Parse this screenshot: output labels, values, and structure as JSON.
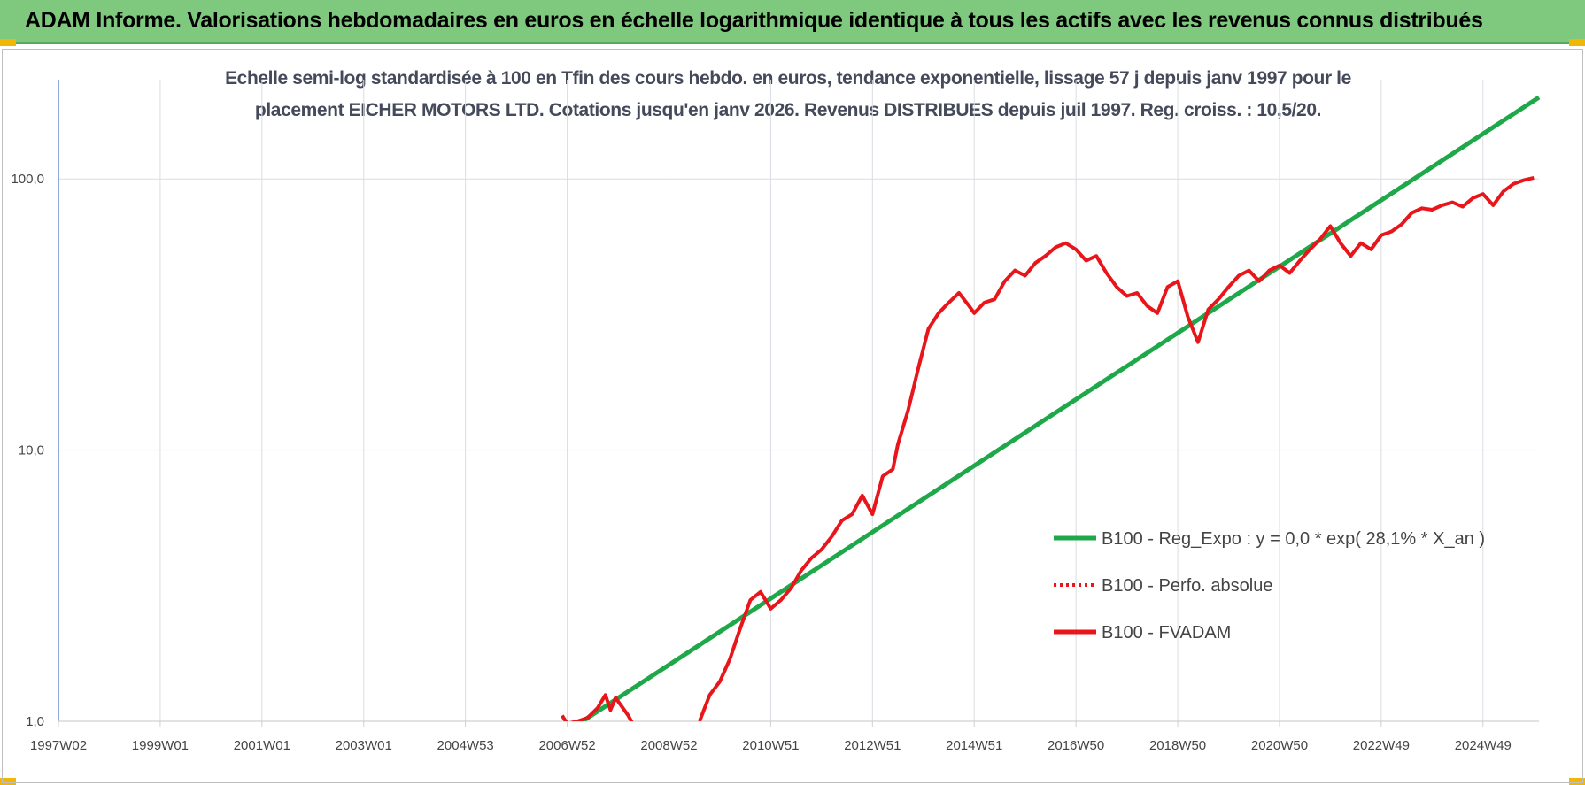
{
  "banner": {
    "title": "ADAM Informe. Valorisations hebdomadaires en euros en échelle logarithmique identique à tous les actifs avec les revenus connus distribués"
  },
  "colors": {
    "banner": "#7fc97f",
    "trend": "#1ea84a",
    "series": "#e8161b",
    "grid": "#d9dde3",
    "title": "#444a59"
  },
  "chart_data": {
    "type": "line",
    "title_line1": "Echelle semi-log standardisée à 100 en Tfin des cours hebdo. en euros, tendance exponentielle, lissage 57 j depuis janv 1997 pour le",
    "title_line2": "placement EICHER MOTORS LTD. Cotations jusqu'en janv 2026. Revenus DISTRIBUES depuis juil 1997. Reg. croiss. : 10,5/20.",
    "y_scale": "log",
    "ylim": [
      1,
      200
    ],
    "xlim": [
      1997.0,
      2026.1
    ],
    "y_ticks": [
      1,
      10,
      100
    ],
    "y_tick_labels": [
      "1,0",
      "10,0",
      "100,0"
    ],
    "x_tick_labels": [
      "1997W02",
      "1999W01",
      "2001W01",
      "2003W01",
      "2004W53",
      "2006W52",
      "2008W52",
      "2010W51",
      "2012W51",
      "2014W51",
      "2016W50",
      "2018W50",
      "2020W50",
      "2022W49",
      "2024W49"
    ],
    "x_tick_positions": [
      1997.0,
      1999.0,
      2001.0,
      2003.0,
      2005.0,
      2007.0,
      2009.0,
      2011.0,
      2013.0,
      2015.0,
      2017.0,
      2019.0,
      2021.0,
      2023.0,
      2025.0
    ],
    "grid": true,
    "legend_position": "right",
    "series": [
      {
        "name": "B100 - Reg_Expo : y = 0,0 * exp( 28,1% *  X_an )",
        "style": "solid-thick",
        "color": "#1ea84a",
        "x": [
          2007.3,
          2026.1
        ],
        "y": [
          1.0,
          200.0
        ]
      },
      {
        "name": "B100 - Perfo. absolue",
        "style": "dotted",
        "color": "#e8161b",
        "x": [],
        "y": []
      },
      {
        "name": "B100 - FVADAM",
        "style": "solid",
        "color": "#e8161b",
        "segments": [
          {
            "x": [
              2006.9,
              2007.0,
              2007.2,
              2007.4,
              2007.6,
              2007.75,
              2007.85,
              2007.95,
              2008.05,
              2008.2,
              2008.3
            ],
            "y": [
              1.05,
              0.98,
              1.0,
              1.03,
              1.12,
              1.25,
              1.1,
              1.22,
              1.15,
              1.05,
              0.97
            ]
          },
          {
            "x": [
              2009.6,
              2009.8,
              2010.0,
              2010.2,
              2010.4,
              2010.6,
              2010.8,
              2011.0,
              2011.2,
              2011.4,
              2011.6,
              2011.8,
              2012.0,
              2012.2,
              2012.4,
              2012.6,
              2012.8,
              2013.0,
              2013.2,
              2013.4,
              2013.5,
              2013.7,
              2013.9,
              2014.1,
              2014.3,
              2014.5,
              2014.7,
              2014.9,
              2015.0,
              2015.2,
              2015.4,
              2015.6,
              2015.8,
              2016.0,
              2016.2,
              2016.4,
              2016.6,
              2016.8,
              2017.0,
              2017.2,
              2017.4,
              2017.6,
              2017.8,
              2018.0,
              2018.2,
              2018.4,
              2018.6,
              2018.8,
              2019.0,
              2019.2,
              2019.4,
              2019.6,
              2019.8,
              2020.0,
              2020.2,
              2020.4,
              2020.6,
              2020.8,
              2021.0,
              2021.2,
              2021.4,
              2021.6,
              2021.8,
              2022.0,
              2022.2,
              2022.4,
              2022.6,
              2022.8,
              2023.0,
              2023.2,
              2023.4,
              2023.6,
              2023.8,
              2024.0,
              2024.2,
              2024.4,
              2024.6,
              2024.8,
              2025.0,
              2025.2,
              2025.4,
              2025.6,
              2025.8,
              2026.0
            ],
            "y": [
              1.0,
              1.25,
              1.4,
              1.7,
              2.2,
              2.8,
              3.0,
              2.6,
              2.8,
              3.1,
              3.6,
              4.0,
              4.3,
              4.8,
              5.5,
              5.8,
              6.8,
              5.8,
              8.0,
              8.5,
              10.5,
              14.0,
              20.0,
              28.0,
              32.0,
              35.0,
              38.0,
              34.0,
              32.0,
              35.0,
              36.0,
              42.0,
              46.0,
              44.0,
              49.0,
              52.0,
              56.0,
              58.0,
              55.0,
              50.0,
              52.0,
              45.0,
              40.0,
              37.0,
              38.0,
              34.0,
              32.0,
              40.0,
              42.0,
              31.0,
              25.0,
              33.0,
              36.0,
              40.0,
              44.0,
              46.0,
              42.0,
              46.0,
              48.0,
              45.0,
              50.0,
              55.0,
              60.0,
              67.0,
              58.0,
              52.0,
              58.0,
              55.0,
              62.0,
              64.0,
              68.0,
              75.0,
              78.0,
              77.0,
              80.0,
              82.0,
              79.0,
              85.0,
              88.0,
              80.0,
              90.0,
              96.0,
              99.0,
              101.0
            ]
          }
        ]
      }
    ]
  }
}
